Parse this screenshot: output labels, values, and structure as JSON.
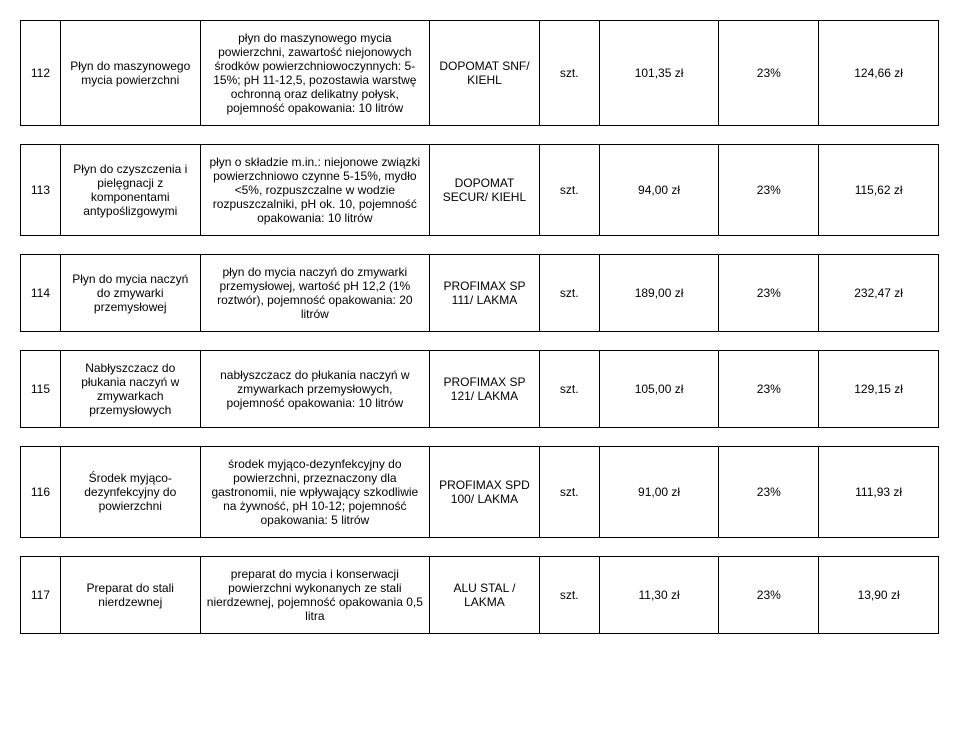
{
  "rows": [
    {
      "num": "112",
      "name": "Płyn do maszynowego mycia powierzchni",
      "desc": "płyn do maszynowego mycia powierzchni, zawartość niejonowych środków powierzchniowoczynnych: 5-15%; pH 11-12,5, pozostawia warstwę ochronną oraz delikatny połysk, pojemność opakowania: 10 litrów",
      "product": "DOPOMAT SNF/ KIEHL",
      "unit": "szt.",
      "price1": "101,35 zł",
      "vat": "23%",
      "price2": "124,66 zł"
    },
    {
      "num": "113",
      "name": "Płyn do czyszczenia i pielęgnacji z komponentami antypoślizgowymi",
      "desc": "płyn o składzie m.in.: niejonowe związki powierzchniowo czynne 5-15%, mydło <5%, rozpuszczalne w wodzie rozpuszczalniki, pH ok. 10, pojemność opakowania: 10 litrów",
      "product": "DOPOMAT SECUR/ KIEHL",
      "unit": "szt.",
      "price1": "94,00 zł",
      "vat": "23%",
      "price2": "115,62 zł"
    },
    {
      "num": "114",
      "name": "Płyn do mycia naczyń do zmywarki przemysłowej",
      "desc": "płyn do mycia naczyń do zmywarki przemysłowej, wartość pH 12,2 (1% roztwór), pojemność opakowania: 20 litrów",
      "product": "PROFIMAX SP 111/ LAKMA",
      "unit": "szt.",
      "price1": "189,00 zł",
      "vat": "23%",
      "price2": "232,47 zł"
    },
    {
      "num": "115",
      "name": "Nabłyszczacz do płukania naczyń w zmywarkach przemysłowych",
      "desc": "nabłyszczacz do płukania naczyń w zmywarkach przemysłowych, pojemność opakowania: 10 litrów",
      "product": "PROFIMAX SP 121/ LAKMA",
      "unit": "szt.",
      "price1": "105,00 zł",
      "vat": "23%",
      "price2": "129,15 zł"
    },
    {
      "num": "116",
      "name": "Środek myjąco-dezynfekcyjny do powierzchni",
      "desc": "środek myjąco-dezynfekcyjny do powierzchni, przeznaczony dla gastronomii, nie wpływający szkodliwie na żywność, pH 10-12; pojemność opakowania: 5 litrów",
      "product": "PROFIMAX SPD 100/ LAKMA",
      "unit": "szt.",
      "price1": "91,00 zł",
      "vat": "23%",
      "price2": "111,93 zł"
    },
    {
      "num": "117",
      "name": "Preparat do stali nierdzewnej",
      "desc": "preparat do mycia i konserwacji powierzchni wykonanych ze stali nierdzewnej, pojemność opakowania 0,5 litra",
      "product": "ALU STAL / LAKMA",
      "unit": "szt.",
      "price1": "11,30 zł",
      "vat": "23%",
      "price2": "13,90 zł"
    }
  ]
}
